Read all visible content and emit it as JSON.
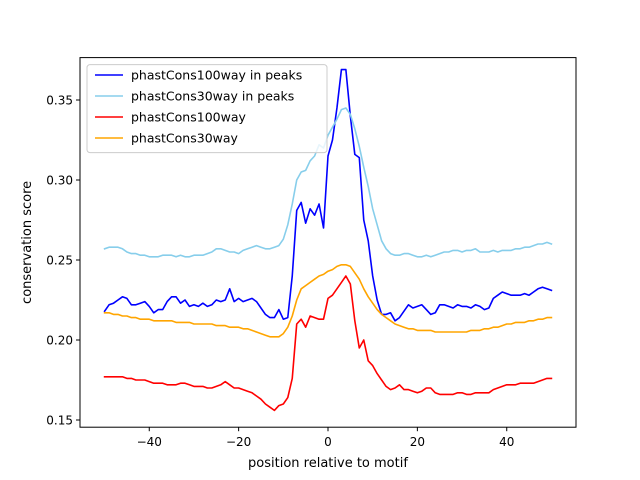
{
  "chart_data": {
    "type": "line",
    "xlabel": "position relative to motif",
    "ylabel": "conservation score",
    "xlim": [
      -55.5,
      55.5
    ],
    "ylim": [
      0.1455,
      0.3765
    ],
    "xticks": [
      -40,
      -20,
      0,
      20,
      40
    ],
    "xtick_labels": [
      "−40",
      "−20",
      "0",
      "20",
      "40"
    ],
    "yticks": [
      0.15,
      0.2,
      0.25,
      0.3,
      0.35
    ],
    "ytick_labels": [
      "0.15",
      "0.20",
      "0.25",
      "0.30",
      "0.35"
    ],
    "grid": false,
    "legend_position": "top-left",
    "x": [
      -50,
      -49,
      -48,
      -47,
      -46,
      -45,
      -44,
      -43,
      -42,
      -41,
      -40,
      -39,
      -38,
      -37,
      -36,
      -35,
      -34,
      -33,
      -32,
      -31,
      -30,
      -29,
      -28,
      -27,
      -26,
      -25,
      -24,
      -23,
      -22,
      -21,
      -20,
      -19,
      -18,
      -17,
      -16,
      -15,
      -14,
      -13,
      -12,
      -11,
      -10,
      -9,
      -8,
      -7,
      -6,
      -5,
      -4,
      -3,
      -2,
      -1,
      0,
      1,
      2,
      3,
      4,
      5,
      6,
      7,
      8,
      9,
      10,
      11,
      12,
      13,
      14,
      15,
      16,
      17,
      18,
      19,
      20,
      21,
      22,
      23,
      24,
      25,
      26,
      27,
      28,
      29,
      30,
      31,
      32,
      33,
      34,
      35,
      36,
      37,
      38,
      39,
      40,
      41,
      42,
      43,
      44,
      45,
      46,
      47,
      48,
      49,
      50
    ],
    "series": [
      {
        "name": "phastCons100way in peaks",
        "color": "#0000ff",
        "values": [
          0.218,
          0.222,
          0.223,
          0.225,
          0.227,
          0.226,
          0.222,
          0.222,
          0.223,
          0.224,
          0.221,
          0.217,
          0.219,
          0.219,
          0.224,
          0.227,
          0.227,
          0.223,
          0.225,
          0.221,
          0.222,
          0.221,
          0.223,
          0.221,
          0.222,
          0.225,
          0.224,
          0.225,
          0.232,
          0.224,
          0.226,
          0.224,
          0.225,
          0.226,
          0.224,
          0.22,
          0.216,
          0.214,
          0.214,
          0.219,
          0.213,
          0.214,
          0.24,
          0.281,
          0.286,
          0.273,
          0.282,
          0.278,
          0.285,
          0.27,
          0.315,
          0.325,
          0.345,
          0.369,
          0.369,
          0.34,
          0.316,
          0.314,
          0.275,
          0.262,
          0.24,
          0.225,
          0.216,
          0.216,
          0.217,
          0.212,
          0.214,
          0.218,
          0.222,
          0.22,
          0.221,
          0.222,
          0.219,
          0.216,
          0.217,
          0.222,
          0.222,
          0.221,
          0.22,
          0.222,
          0.221,
          0.221,
          0.22,
          0.222,
          0.221,
          0.219,
          0.22,
          0.226,
          0.228,
          0.23,
          0.229,
          0.228,
          0.228,
          0.228,
          0.229,
          0.228,
          0.23,
          0.232,
          0.233,
          0.232,
          0.231
        ]
      },
      {
        "name": "phastCons30way in peaks",
        "color": "#87ceeb",
        "values": [
          0.257,
          0.258,
          0.258,
          0.258,
          0.257,
          0.255,
          0.254,
          0.254,
          0.253,
          0.253,
          0.252,
          0.252,
          0.252,
          0.253,
          0.253,
          0.253,
          0.252,
          0.253,
          0.252,
          0.252,
          0.253,
          0.253,
          0.253,
          0.254,
          0.255,
          0.257,
          0.257,
          0.256,
          0.255,
          0.255,
          0.254,
          0.256,
          0.257,
          0.258,
          0.259,
          0.258,
          0.257,
          0.257,
          0.258,
          0.259,
          0.263,
          0.272,
          0.285,
          0.3,
          0.305,
          0.306,
          0.312,
          0.315,
          0.322,
          0.32,
          0.328,
          0.333,
          0.338,
          0.344,
          0.345,
          0.341,
          0.332,
          0.321,
          0.308,
          0.296,
          0.282,
          0.272,
          0.262,
          0.257,
          0.254,
          0.253,
          0.253,
          0.254,
          0.254,
          0.253,
          0.252,
          0.252,
          0.253,
          0.252,
          0.253,
          0.254,
          0.255,
          0.255,
          0.256,
          0.256,
          0.255,
          0.256,
          0.256,
          0.257,
          0.255,
          0.255,
          0.255,
          0.256,
          0.255,
          0.256,
          0.256,
          0.256,
          0.257,
          0.257,
          0.258,
          0.258,
          0.259,
          0.26,
          0.26,
          0.261,
          0.26
        ]
      },
      {
        "name": "phastCons100way",
        "color": "#ff0000",
        "values": [
          0.177,
          0.177,
          0.177,
          0.177,
          0.177,
          0.176,
          0.176,
          0.175,
          0.175,
          0.175,
          0.174,
          0.173,
          0.173,
          0.173,
          0.172,
          0.172,
          0.172,
          0.173,
          0.173,
          0.172,
          0.171,
          0.171,
          0.171,
          0.17,
          0.17,
          0.171,
          0.172,
          0.174,
          0.172,
          0.17,
          0.17,
          0.169,
          0.168,
          0.167,
          0.165,
          0.163,
          0.16,
          0.158,
          0.156,
          0.159,
          0.16,
          0.164,
          0.176,
          0.21,
          0.213,
          0.208,
          0.215,
          0.214,
          0.213,
          0.213,
          0.226,
          0.228,
          0.232,
          0.236,
          0.24,
          0.235,
          0.212,
          0.195,
          0.2,
          0.187,
          0.184,
          0.179,
          0.175,
          0.171,
          0.169,
          0.17,
          0.172,
          0.169,
          0.169,
          0.168,
          0.167,
          0.168,
          0.17,
          0.17,
          0.167,
          0.166,
          0.166,
          0.166,
          0.166,
          0.167,
          0.167,
          0.166,
          0.166,
          0.167,
          0.167,
          0.167,
          0.167,
          0.169,
          0.17,
          0.171,
          0.172,
          0.172,
          0.172,
          0.173,
          0.173,
          0.173,
          0.173,
          0.174,
          0.175,
          0.176,
          0.176
        ]
      },
      {
        "name": "phastCons30way",
        "color": "#ffa500",
        "values": [
          0.217,
          0.217,
          0.216,
          0.216,
          0.215,
          0.215,
          0.214,
          0.214,
          0.213,
          0.213,
          0.213,
          0.212,
          0.212,
          0.212,
          0.212,
          0.212,
          0.211,
          0.211,
          0.211,
          0.211,
          0.21,
          0.21,
          0.21,
          0.21,
          0.21,
          0.209,
          0.209,
          0.209,
          0.208,
          0.208,
          0.208,
          0.207,
          0.207,
          0.206,
          0.205,
          0.204,
          0.203,
          0.202,
          0.202,
          0.202,
          0.204,
          0.208,
          0.215,
          0.225,
          0.232,
          0.234,
          0.236,
          0.238,
          0.24,
          0.241,
          0.243,
          0.244,
          0.246,
          0.247,
          0.247,
          0.246,
          0.242,
          0.238,
          0.232,
          0.227,
          0.223,
          0.219,
          0.216,
          0.214,
          0.212,
          0.21,
          0.209,
          0.208,
          0.207,
          0.207,
          0.206,
          0.206,
          0.206,
          0.206,
          0.205,
          0.205,
          0.205,
          0.205,
          0.205,
          0.205,
          0.205,
          0.205,
          0.206,
          0.206,
          0.206,
          0.207,
          0.207,
          0.208,
          0.208,
          0.209,
          0.21,
          0.21,
          0.211,
          0.211,
          0.211,
          0.212,
          0.212,
          0.213,
          0.213,
          0.214,
          0.214
        ]
      }
    ]
  }
}
